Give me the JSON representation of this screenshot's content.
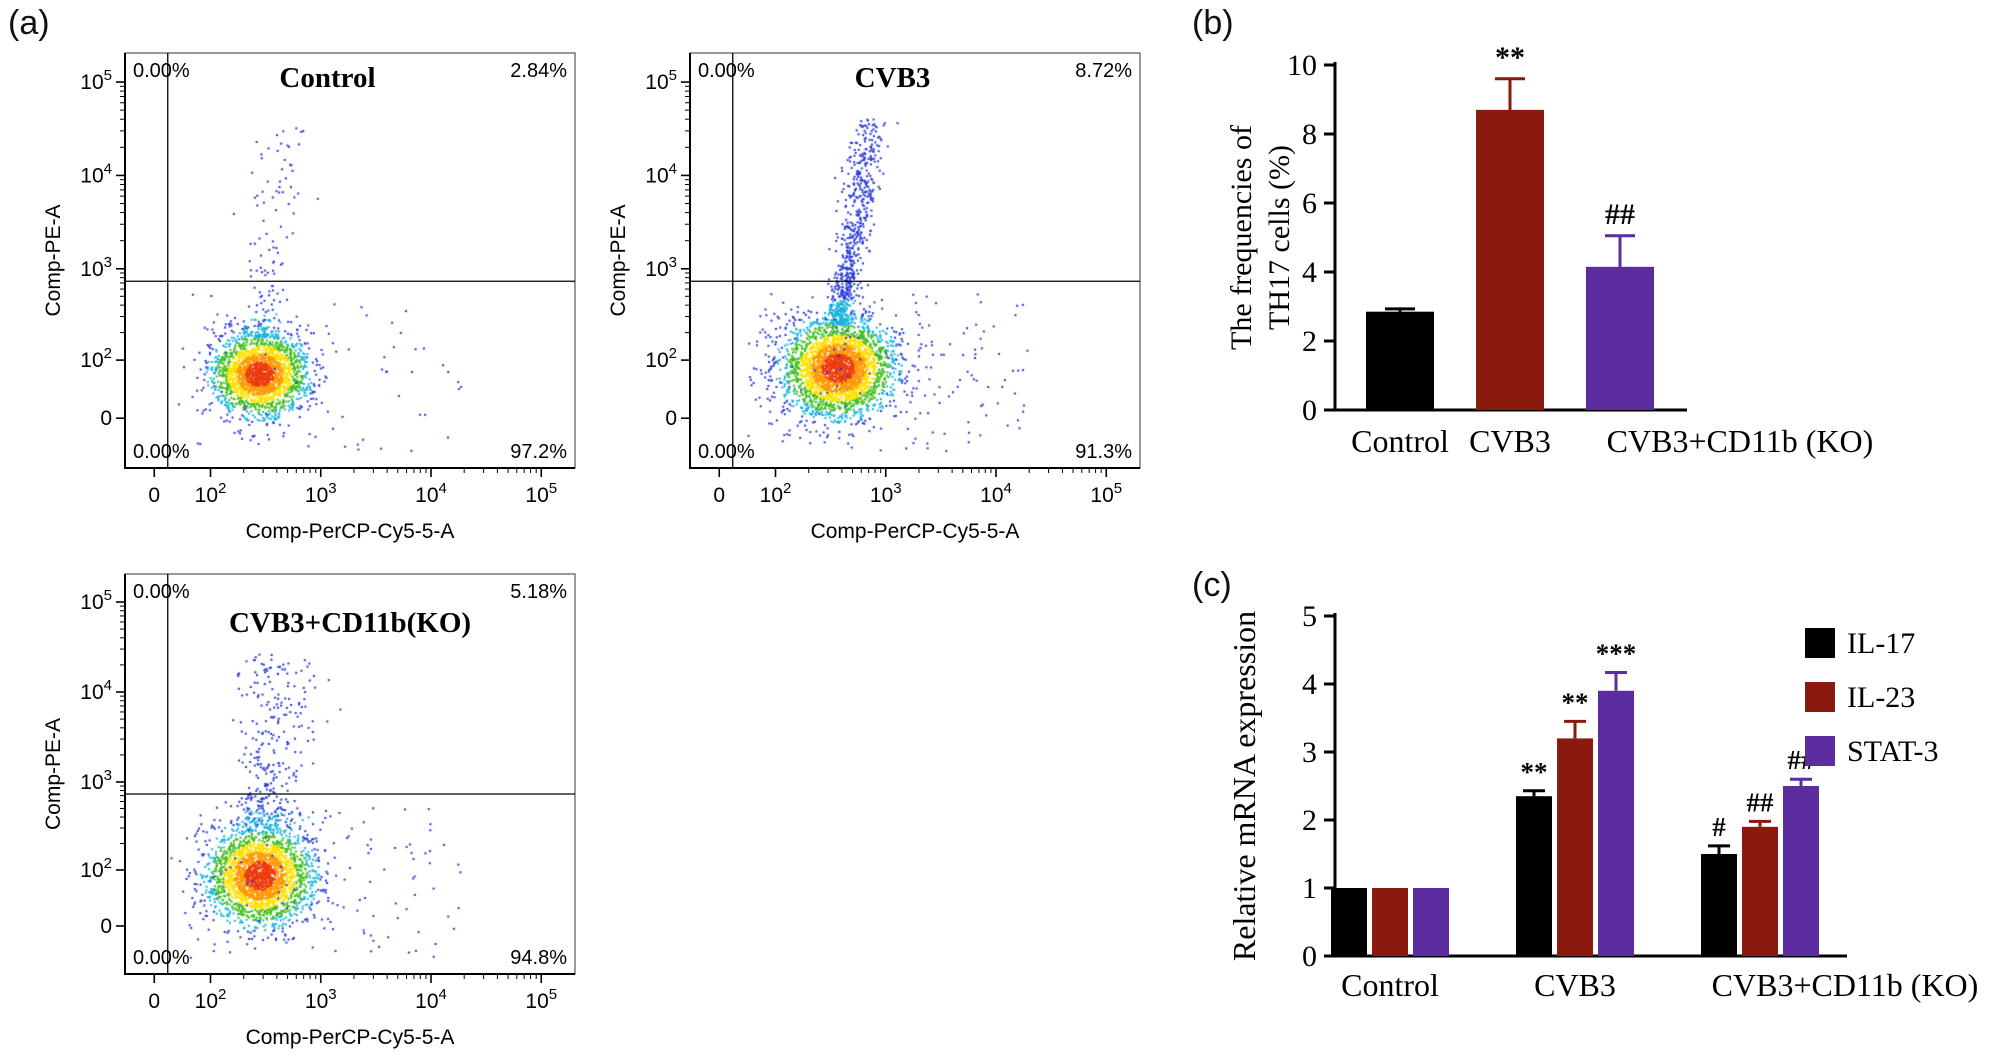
{
  "panel_labels": {
    "a": "(a)",
    "b": "(b)",
    "c": "(c)"
  },
  "flow": {
    "x_axis_label": "Comp-PerCP-Cy5-5-A",
    "y_axis_label": "Comp-PE-A",
    "x_ticks": [
      {
        "t": "0"
      },
      {
        "t": "10",
        "e": "2"
      },
      {
        "t": "10",
        "e": "3"
      },
      {
        "t": "10",
        "e": "4"
      },
      {
        "t": "10",
        "e": "5"
      }
    ],
    "y_ticks": [
      {
        "t": "0"
      },
      {
        "t": "10",
        "e": "2"
      },
      {
        "t": "10",
        "e": "3"
      },
      {
        "t": "10",
        "e": "4"
      },
      {
        "t": "10",
        "e": "5"
      }
    ],
    "plots": [
      {
        "title": "Control",
        "quadrants": {
          "upper_left": "0.00%",
          "upper_right": "2.84%",
          "lower_left": "0.00%",
          "lower_right": "97.2%"
        }
      },
      {
        "title": "CVB3",
        "quadrants": {
          "upper_left": "0.00%",
          "upper_right": "8.72%",
          "lower_left": "0.00%",
          "lower_right": "91.3%"
        }
      },
      {
        "title": "CVB3+CD11b(KO)",
        "quadrants": {
          "upper_left": "0.00%",
          "upper_right": "5.18%",
          "lower_left": "0.00%",
          "lower_right": "94.8%"
        }
      }
    ]
  },
  "chart_data": [
    {
      "id": "b",
      "type": "bar",
      "title": "",
      "ylabel": "The frequencies of TH17 cells (%)",
      "ylabel_lines": [
        "The frequencies of",
        "TH17 cells (%)"
      ],
      "categories": [
        "Control",
        "CVB3",
        "CVB3+CD11b (KO)"
      ],
      "values": [
        2.85,
        8.7,
        4.15
      ],
      "errors": [
        0.08,
        0.9,
        0.9
      ],
      "annotations": [
        "",
        "**",
        "##"
      ],
      "colors": [
        "#000000",
        "#8b1a0e",
        "#5c2d9f"
      ],
      "ylim": [
        0,
        10
      ],
      "yticks": [
        0,
        2,
        4,
        6,
        8,
        10
      ],
      "grid": false,
      "legend_position": "none"
    },
    {
      "id": "c",
      "type": "grouped-bar",
      "title": "",
      "ylabel": "Relative mRNA expression",
      "categories": [
        "Control",
        "CVB3",
        "CVB3+CD11b (KO)"
      ],
      "series": [
        {
          "name": "IL-17",
          "color": "#000000",
          "values": [
            1.0,
            2.35,
            1.5
          ],
          "errors": [
            0,
            0.08,
            0.12
          ],
          "annotations": [
            "",
            "**",
            "#"
          ]
        },
        {
          "name": "IL-23",
          "color": "#8b1a0e",
          "values": [
            1.0,
            3.2,
            1.9
          ],
          "errors": [
            0,
            0.25,
            0.08
          ],
          "annotations": [
            "",
            "**",
            "##"
          ]
        },
        {
          "name": "STAT-3",
          "color": "#5c2d9f",
          "values": [
            1.0,
            3.9,
            2.5
          ],
          "errors": [
            0,
            0.27,
            0.1
          ],
          "annotations": [
            "",
            "***",
            "##"
          ]
        }
      ],
      "ylim": [
        0,
        5
      ],
      "yticks": [
        0,
        1,
        2,
        3,
        4,
        5
      ],
      "grid": false,
      "legend_position": "top-right"
    }
  ]
}
